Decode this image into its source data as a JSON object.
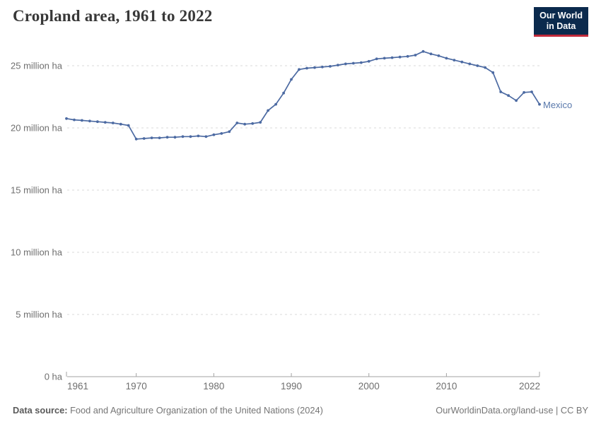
{
  "header": {
    "title": "Cropland area, 1961 to 2022",
    "logo": {
      "line1": "Our World",
      "line2": "in Data"
    }
  },
  "chart_data": {
    "type": "line",
    "title": "Cropland area, 1961 to 2022",
    "unit": "million ha",
    "grid": "dashed horizontal gridlines",
    "legend_position": "end-of-line label",
    "ylim": [
      0,
      26.5
    ],
    "xlim": [
      1961,
      2022
    ],
    "x": [
      1961,
      1962,
      1963,
      1964,
      1965,
      1966,
      1967,
      1968,
      1969,
      1970,
      1971,
      1972,
      1973,
      1974,
      1975,
      1976,
      1977,
      1978,
      1979,
      1980,
      1981,
      1982,
      1983,
      1984,
      1985,
      1986,
      1987,
      1988,
      1989,
      1990,
      1991,
      1992,
      1993,
      1994,
      1995,
      1996,
      1997,
      1998,
      1999,
      2000,
      2001,
      2002,
      2003,
      2004,
      2005,
      2006,
      2007,
      2008,
      2009,
      2010,
      2011,
      2012,
      2013,
      2014,
      2015,
      2016,
      2017,
      2018,
      2019,
      2020,
      2021,
      2022
    ],
    "series": [
      {
        "name": "Mexico",
        "values": [
          20.75,
          20.65,
          20.6,
          20.55,
          20.5,
          20.45,
          20.4,
          20.3,
          20.2,
          19.1,
          19.15,
          19.2,
          19.2,
          19.25,
          19.25,
          19.3,
          19.3,
          19.35,
          19.3,
          19.45,
          19.55,
          19.7,
          20.4,
          20.3,
          20.35,
          20.45,
          21.4,
          21.9,
          22.8,
          23.9,
          24.7,
          24.8,
          24.85,
          24.9,
          24.95,
          25.05,
          25.15,
          25.2,
          25.25,
          25.35,
          25.55,
          25.6,
          25.65,
          25.7,
          25.75,
          25.85,
          26.15,
          25.95,
          25.8,
          25.6,
          25.45,
          25.3,
          25.15,
          25.0,
          24.85,
          24.45,
          22.9,
          22.6,
          22.2,
          22.85,
          22.9,
          21.9
        ]
      }
    ],
    "y_ticks": [
      {
        "value": 0,
        "label": "0 ha"
      },
      {
        "value": 5,
        "label": "5 million ha"
      },
      {
        "value": 10,
        "label": "10 million ha"
      },
      {
        "value": 15,
        "label": "15 million ha"
      },
      {
        "value": 20,
        "label": "20 million ha"
      },
      {
        "value": 25,
        "label": "25 million ha"
      }
    ],
    "x_ticks": [
      {
        "value": 1961,
        "label": "1961"
      },
      {
        "value": 1970,
        "label": "1970"
      },
      {
        "value": 1980,
        "label": "1980"
      },
      {
        "value": 1990,
        "label": "1990"
      },
      {
        "value": 2000,
        "label": "2000"
      },
      {
        "value": 2010,
        "label": "2010"
      },
      {
        "value": 2022,
        "label": "2022"
      }
    ]
  },
  "colors": {
    "line": "#4c6aa2",
    "entity_label": "#5878ab",
    "gridline": "#d9d9d9",
    "axis": "#a3a3a3",
    "tick_label": "#6f6f6f",
    "logo_bg": "#0b2a4d",
    "logo_accent": "#c0293a"
  },
  "footer": {
    "source_label": "Data source:",
    "source_text": " Food and Agriculture Organization of the United Nations (2024)",
    "url": "OurWorldinData.org/land-use",
    "separator": " | ",
    "license": "CC BY"
  }
}
